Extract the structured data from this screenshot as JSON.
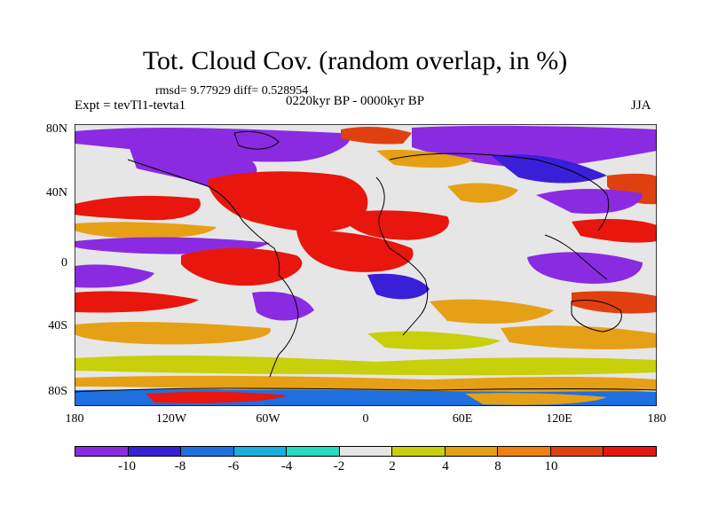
{
  "title": "Tot. Cloud Cov. (random overlap, in %)",
  "stats": "rmsd= 9.77929 diff= 0.528954",
  "expt": "Expt = tevTl1-tevta1",
  "period": "0220kyr BP - 0000kyr BP",
  "season": "JJA",
  "y_ticks": [
    "80N",
    "40N",
    "0",
    "40S",
    "80S"
  ],
  "x_ticks": [
    "180",
    "120W",
    "60W",
    "0",
    "60E",
    "120E",
    "180"
  ],
  "colorbar": {
    "colors": [
      "#8a2be2",
      "#3a1fd8",
      "#1e70e0",
      "#18b0e0",
      "#28dcc0",
      "#e6e6e6",
      "#c8d00c",
      "#e6a016",
      "#f08010",
      "#e04010",
      "#e8160c"
    ],
    "labels": [
      "-10",
      "-8",
      "-6",
      "-4",
      "-2",
      "2",
      "4",
      "8",
      "10"
    ]
  }
}
